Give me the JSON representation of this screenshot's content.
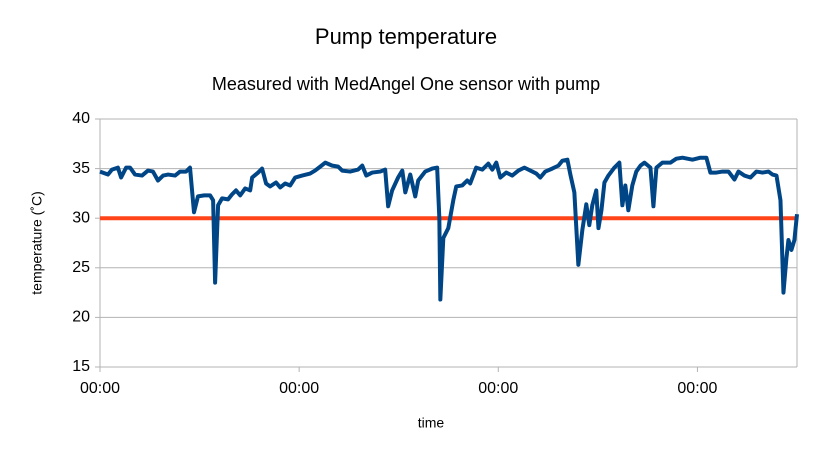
{
  "chart_data": {
    "type": "line",
    "title": "Pump temperature",
    "subtitle": "Measured with MedAngel One sensor with pump",
    "x_label": "time",
    "y_label": "temperature (˚C)",
    "xlim": [
      0,
      3.5
    ],
    "xticks": [
      {
        "value": 0,
        "label": "00:00"
      },
      {
        "value": 1,
        "label": "00:00"
      },
      {
        "value": 2,
        "label": "00:00"
      },
      {
        "value": 3,
        "label": "00:00"
      }
    ],
    "ylim": [
      15,
      40
    ],
    "yticks": [
      15,
      20,
      25,
      30,
      35,
      40
    ],
    "grid": true,
    "series": [
      {
        "color": "#ff4419",
        "x": [
          0,
          3.5
        ],
        "values": [
          30,
          30
        ]
      },
      {
        "color": "#004586",
        "x": [
          0,
          0.04,
          0.06,
          0.09,
          0.106,
          0.131,
          0.151,
          0.176,
          0.211,
          0.241,
          0.266,
          0.291,
          0.317,
          0.342,
          0.377,
          0.402,
          0.432,
          0.452,
          0.472,
          0.492,
          0.523,
          0.553,
          0.568,
          0.578,
          0.593,
          0.613,
          0.643,
          0.663,
          0.683,
          0.704,
          0.729,
          0.754,
          0.764,
          0.794,
          0.814,
          0.834,
          0.854,
          0.884,
          0.905,
          0.93,
          0.955,
          0.98,
          1.015,
          1.055,
          1.08,
          1.106,
          1.131,
          1.166,
          1.196,
          1.216,
          1.256,
          1.296,
          1.317,
          1.337,
          1.367,
          1.407,
          1.432,
          1.447,
          1.467,
          1.497,
          1.518,
          1.533,
          1.558,
          1.583,
          1.598,
          1.633,
          1.668,
          1.693,
          1.704,
          1.709,
          1.724,
          1.749,
          1.774,
          1.789,
          1.819,
          1.844,
          1.859,
          1.889,
          1.92,
          1.95,
          1.97,
          1.99,
          2.01,
          2.04,
          2.07,
          2.101,
          2.131,
          2.161,
          2.191,
          2.211,
          2.236,
          2.271,
          2.302,
          2.322,
          2.347,
          2.362,
          2.382,
          2.402,
          2.422,
          2.442,
          2.457,
          2.472,
          2.492,
          2.503,
          2.518,
          2.533,
          2.553,
          2.583,
          2.608,
          2.623,
          2.638,
          2.653,
          2.673,
          2.693,
          2.714,
          2.734,
          2.764,
          2.779,
          2.794,
          2.824,
          2.864,
          2.894,
          2.925,
          2.975,
          3.015,
          3.045,
          3.065,
          3.095,
          3.126,
          3.156,
          3.186,
          3.206,
          3.236,
          3.266,
          3.296,
          3.327,
          3.357,
          3.377,
          3.397,
          3.417,
          3.432,
          3.447,
          3.457,
          3.472,
          3.487,
          3.5
        ],
        "values": [
          34.7,
          34.4,
          34.9,
          35.1,
          34.1,
          35.1,
          35.1,
          34.4,
          34.3,
          34.8,
          34.7,
          33.8,
          34.3,
          34.4,
          34.3,
          34.7,
          34.7,
          35.1,
          30.6,
          32.2,
          32.3,
          32.3,
          31.8,
          23.5,
          31.3,
          32.0,
          31.9,
          32.4,
          32.8,
          32.3,
          33.0,
          32.8,
          34.1,
          34.6,
          35.0,
          33.5,
          33.2,
          33.6,
          33.1,
          33.5,
          33.3,
          34.1,
          34.3,
          34.5,
          34.8,
          35.2,
          35.6,
          35.3,
          35.2,
          34.8,
          34.7,
          34.9,
          35.3,
          34.3,
          34.6,
          34.7,
          34.9,
          31.2,
          32.8,
          34.1,
          34.8,
          32.6,
          34.4,
          32.2,
          33.8,
          34.7,
          35.0,
          35.1,
          30.0,
          21.8,
          28.0,
          29.0,
          31.8,
          33.2,
          33.3,
          33.8,
          33.5,
          35.1,
          34.9,
          35.5,
          34.9,
          35.6,
          34.1,
          34.6,
          34.3,
          34.8,
          35.1,
          34.8,
          34.5,
          34.1,
          34.7,
          35.0,
          35.3,
          35.8,
          35.9,
          34.4,
          32.6,
          25.3,
          28.8,
          31.4,
          29.3,
          31.3,
          32.8,
          29.0,
          30.8,
          33.6,
          34.3,
          35.1,
          35.6,
          31.3,
          33.3,
          30.8,
          33.3,
          34.7,
          35.3,
          35.6,
          35.1,
          31.2,
          35.1,
          35.6,
          35.6,
          36.0,
          36.1,
          35.9,
          36.1,
          36.1,
          34.6,
          34.6,
          34.7,
          34.7,
          33.9,
          34.7,
          34.3,
          34.1,
          34.7,
          34.6,
          34.7,
          34.4,
          34.3,
          31.8,
          22.5,
          26.0,
          27.8,
          26.8,
          27.8,
          30.4
        ]
      }
    ]
  }
}
